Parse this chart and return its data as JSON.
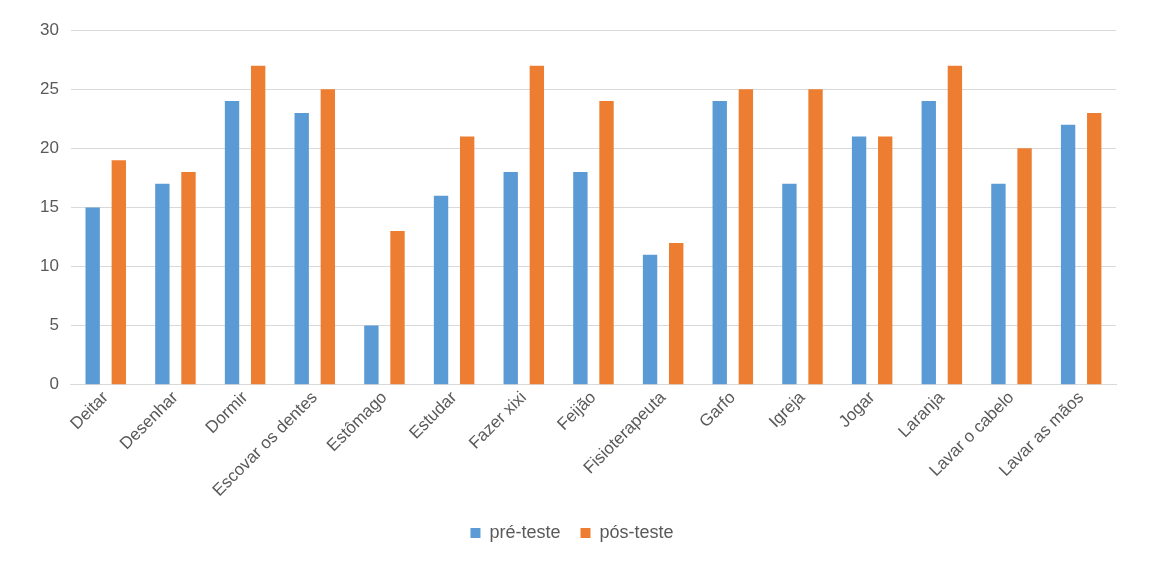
{
  "chart_data": {
    "type": "bar",
    "categories": [
      "Deitar",
      "Desenhar",
      "Dormir",
      "Escovar os dentes",
      "Estômago",
      "Estudar",
      "Fazer xixi",
      "Feijão",
      "Fisioterapeuta",
      "Garfo",
      "Igreja",
      "Jogar",
      "Laranja",
      "Lavar o cabelo",
      "Lavar as mãos"
    ],
    "series": [
      {
        "name": "pré-teste",
        "color": "#5b9bd5",
        "values": [
          15,
          17,
          24,
          23,
          5,
          16,
          18,
          18,
          11,
          24,
          17,
          21,
          24,
          17,
          22
        ]
      },
      {
        "name": "pós-teste",
        "color": "#ed7d31",
        "values": [
          19,
          18,
          27,
          25,
          13,
          21,
          27,
          24,
          12,
          25,
          25,
          21,
          27,
          20,
          23
        ]
      }
    ],
    "ylim": [
      0,
      30
    ],
    "yticks": [
      0,
      5,
      10,
      15,
      20,
      25,
      30
    ],
    "grid": "y",
    "legend": "bottom"
  }
}
